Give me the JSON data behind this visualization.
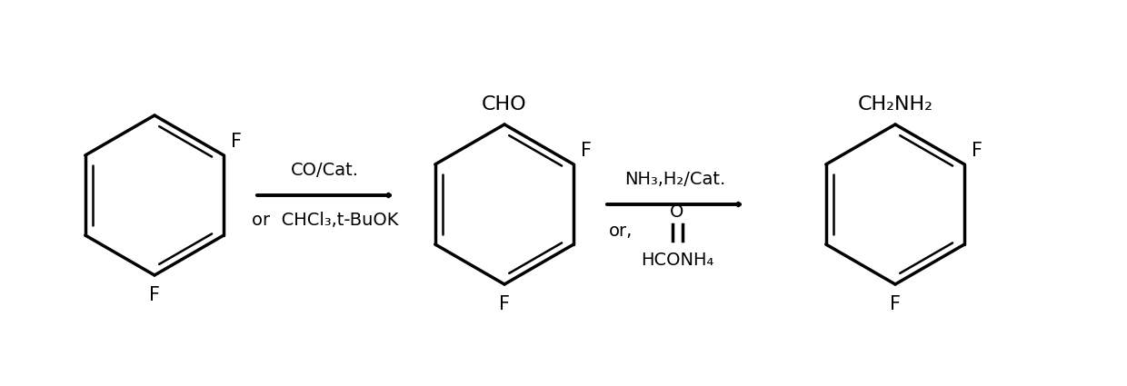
{
  "background_color": "#ffffff",
  "line_color": "#000000",
  "line_width": 2.5,
  "text_color": "#000000",
  "fig_width": 12.4,
  "fig_height": 4.25,
  "dpi": 100,
  "arrow1_label1": "CO/Cat.",
  "arrow1_label2": "or  CHCl₃,t-BuOK",
  "arrow2_label1": "NH₃,H₂/Cat.",
  "arrow2_label2": "or,",
  "formate_O": "O",
  "formate_text": "HCONH₄",
  "mol1_F_top": "F",
  "mol1_F_bot": "F",
  "mol2_CHO": "CHO",
  "mol2_F_right": "F",
  "mol2_F_bot": "F",
  "mol3_CH2NH2": "CH₂NH₂",
  "mol3_F_right": "F",
  "mol3_F_bot": "F",
  "font_size": 15,
  "label_font_size": 14
}
